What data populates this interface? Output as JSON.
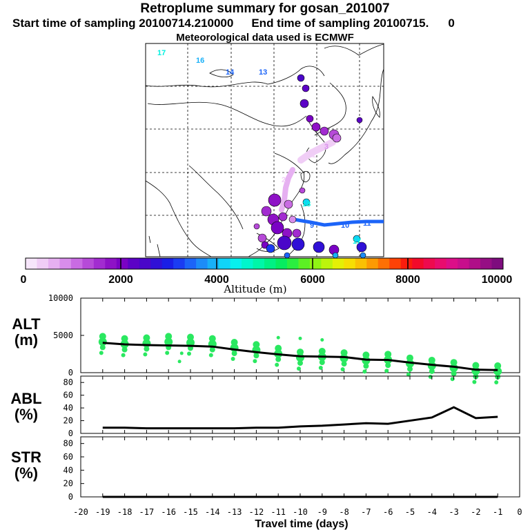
{
  "header": {
    "title": "Retroplume summary for gosan_201007",
    "start_label": "Start time of sampling 20100714.210000",
    "end_label": "End time of sampling 20100715.",
    "end_suffix": "0",
    "met_label": "Meteorological data used is ECMWF"
  },
  "colorbar": {
    "title": "Altitude (m)",
    "ticks": [
      "0",
      "2000",
      "4000",
      "6000",
      "8000",
      "10000"
    ],
    "colors": [
      "#f7e6fb",
      "#f0cdf6",
      "#e6b0f1",
      "#d88deb",
      "#c96be3",
      "#b64ad8",
      "#a22cd0",
      "#8e12c6",
      "#7a02c4",
      "#5c02c6",
      "#4a06c9",
      "#3010d6",
      "#1a1ee6",
      "#1a3cf2",
      "#1c64f8",
      "#1c8cf8",
      "#18b0f8",
      "#10d4f8",
      "#08f0ee",
      "#00f6cc",
      "#00f6a8",
      "#00f084",
      "#06ec60",
      "#2aee40",
      "#5cf024",
      "#90f414",
      "#bcf40c",
      "#e4f006",
      "#f6de04",
      "#fac004",
      "#fc9a04",
      "#fe7004",
      "#fe4206",
      "#fa1c0c",
      "#f20a2a",
      "#ee0a4e",
      "#e80c6e",
      "#dc0e88",
      "#c80e8c",
      "#b00e88",
      "#960e84",
      "#7e0c7e"
    ]
  },
  "map": {
    "labels": [
      {
        "text": "17",
        "color": "#00f0e0"
      },
      {
        "text": "16",
        "color": "#18b0f8"
      },
      {
        "text": "14",
        "color": "#1c64f8"
      },
      {
        "text": "13",
        "color": "#1c64f8"
      },
      {
        "text": "12",
        "color": "#f0cdf6"
      },
      {
        "text": "2",
        "color": "#f0cdf6"
      },
      {
        "text": "3",
        "color": "#d88deb"
      },
      {
        "text": "9",
        "color": "#1c64f8"
      },
      {
        "text": "10",
        "color": "#1c64f8"
      },
      {
        "text": "11",
        "color": "#1c64f8"
      },
      {
        "text": "17",
        "color": "#00f0e0"
      },
      {
        "text": "18",
        "color": "#00f0e0"
      }
    ]
  },
  "chart_data": [
    {
      "type": "line",
      "panel": "ALT",
      "ylabel": "ALT",
      "yunit": "(m)",
      "ylim": [
        0,
        10000
      ],
      "yticks": [
        "10000",
        "5000",
        "0"
      ],
      "x": [
        -19,
        -18,
        -17,
        -16,
        -15,
        -14,
        -13,
        -12,
        -11,
        -10,
        -9,
        -8,
        -7,
        -6,
        -5,
        -4,
        -3,
        -2,
        -1
      ],
      "series": [
        {
          "name": "mean altitude",
          "values": [
            4000,
            3800,
            3700,
            3650,
            3600,
            3500,
            3100,
            2750,
            2450,
            2200,
            2150,
            2100,
            1750,
            1700,
            1350,
            1050,
            800,
            400,
            350
          ]
        },
        {
          "name": "particle clusters",
          "values": [
            4500,
            4200,
            4300,
            4500,
            4400,
            4200,
            3700,
            3400,
            2900,
            2400,
            2500,
            2300,
            2000,
            2100,
            1600,
            1300,
            1000,
            600,
            550
          ]
        }
      ]
    },
    {
      "type": "line",
      "panel": "ABL",
      "ylabel": "ABL",
      "yunit": "(%)",
      "ylim": [
        0,
        90
      ],
      "yticks": [
        "80",
        "60",
        "40",
        "20",
        "0"
      ],
      "x": [
        -19,
        -18,
        -17,
        -16,
        -15,
        -14,
        -13,
        -12,
        -11,
        -10,
        -9,
        -8,
        -7,
        -6,
        -5,
        -4,
        -3,
        -2,
        -1
      ],
      "series": [
        {
          "name": "ABL fraction",
          "values": [
            9,
            9,
            8,
            8,
            8,
            8,
            8,
            9,
            9,
            11,
            12,
            14,
            16,
            15,
            20,
            25,
            41,
            24,
            26
          ]
        }
      ]
    },
    {
      "type": "line",
      "panel": "STR",
      "ylabel": "STR",
      "yunit": "(%)",
      "ylim": [
        0,
        90
      ],
      "yticks": [
        "80",
        "60",
        "40",
        "20",
        "0"
      ],
      "x": [
        -19,
        -18,
        -17,
        -16,
        -15,
        -14,
        -13,
        -12,
        -11,
        -10,
        -9,
        -8,
        -7,
        -6,
        -5,
        -4,
        -3,
        -2,
        -1
      ],
      "series": [
        {
          "name": "STR fraction",
          "values": [
            0,
            0,
            0,
            0,
            0,
            0,
            0,
            0,
            0,
            0,
            0,
            0,
            0,
            0,
            0,
            0,
            0,
            0,
            0
          ]
        }
      ]
    }
  ],
  "xaxis": {
    "title": "Travel time (days)",
    "ticks": [
      "-20",
      "-19",
      "-18",
      "-17",
      "-16",
      "-15",
      "-14",
      "-13",
      "-12",
      "-11",
      "-10",
      "-9",
      "-8",
      "-7",
      "-6",
      "-5",
      "-4",
      "-3",
      "-2",
      "-1",
      "0"
    ]
  },
  "colors": {
    "alt_marker": "#2ae860",
    "line": "#000000",
    "track": "#1c64f8"
  }
}
